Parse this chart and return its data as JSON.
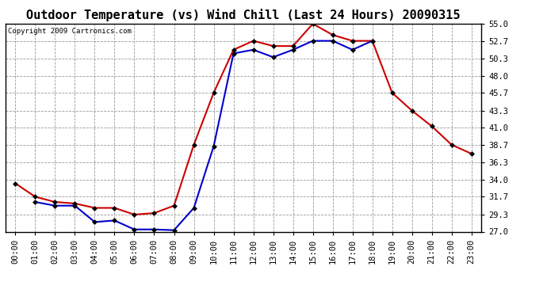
{
  "title": "Outdoor Temperature (vs) Wind Chill (Last 24 Hours) 20090315",
  "copyright_text": "Copyright 2009 Cartronics.com",
  "x_labels": [
    "00:00",
    "01:00",
    "02:00",
    "03:00",
    "04:00",
    "05:00",
    "06:00",
    "07:00",
    "08:00",
    "09:00",
    "10:00",
    "11:00",
    "12:00",
    "13:00",
    "14:00",
    "15:00",
    "16:00",
    "17:00",
    "18:00",
    "19:00",
    "20:00",
    "21:00",
    "22:00",
    "23:00"
  ],
  "temp_data": [
    33.5,
    31.7,
    31.0,
    30.8,
    30.2,
    30.2,
    29.3,
    29.5,
    30.5,
    38.7,
    45.7,
    51.5,
    52.7,
    52.0,
    52.0,
    55.0,
    53.5,
    52.7,
    52.7,
    45.7,
    43.3,
    41.2,
    38.7,
    37.5
  ],
  "windchill_data": [
    null,
    31.0,
    30.5,
    30.5,
    28.3,
    28.5,
    27.3,
    27.3,
    27.2,
    30.2,
    38.5,
    51.0,
    51.5,
    50.5,
    51.5,
    52.7,
    52.7,
    51.5,
    52.7,
    null,
    null,
    null,
    null,
    null
  ],
  "temp_color": "#cc0000",
  "windchill_color": "#0000cc",
  "ylim": [
    27.0,
    55.0
  ],
  "yticks": [
    27.0,
    29.3,
    31.7,
    34.0,
    36.3,
    38.7,
    41.0,
    43.3,
    45.7,
    48.0,
    50.3,
    52.7,
    55.0
  ],
  "bg_color": "#ffffff",
  "plot_bg_color": "#ffffff",
  "grid_color": "#999999",
  "marker": "D",
  "marker_size": 3,
  "line_width": 1.5,
  "title_fontsize": 11,
  "tick_fontsize": 7.5,
  "copyright_fontsize": 6.5
}
